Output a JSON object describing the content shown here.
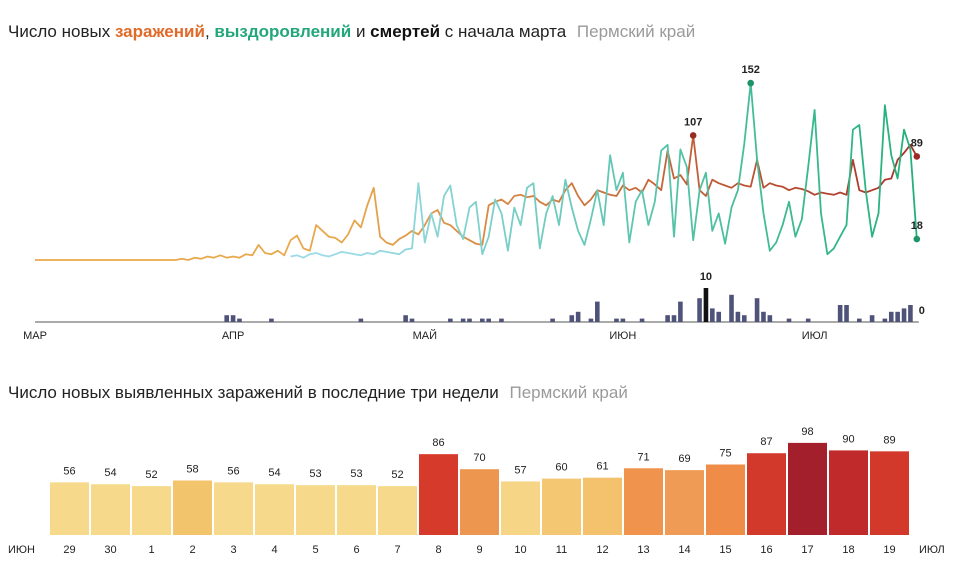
{
  "chart_data": [
    {
      "type": "line",
      "title_lead": "Число новых",
      "title_sep1": ",",
      "title_sep2": "и",
      "title_tail": "с начала марта",
      "subtitle": "Пермский край",
      "categories": [
        "МАР",
        null,
        null,
        null,
        null,
        null,
        null,
        null,
        null,
        null,
        null,
        null,
        null,
        null,
        null,
        null,
        null,
        null,
        null,
        null,
        null,
        null,
        null,
        null,
        null,
        null,
        null,
        null,
        null,
        null,
        null,
        "АПР",
        null,
        null,
        null,
        null,
        null,
        null,
        null,
        null,
        null,
        null,
        null,
        null,
        null,
        null,
        null,
        null,
        null,
        null,
        null,
        null,
        null,
        null,
        null,
        null,
        null,
        null,
        null,
        null,
        null,
        "МАЙ",
        null,
        null,
        null,
        null,
        null,
        null,
        null,
        null,
        null,
        null,
        null,
        null,
        null,
        null,
        null,
        null,
        null,
        null,
        null,
        null,
        null,
        null,
        null,
        null,
        null,
        null,
        null,
        null,
        null,
        null,
        "ИЮН",
        null,
        null,
        null,
        null,
        null,
        null,
        null,
        null,
        null,
        null,
        null,
        null,
        null,
        null,
        null,
        null,
        null,
        null,
        null,
        null,
        null,
        null,
        null,
        null,
        null,
        null,
        null,
        null,
        null,
        "ИЮЛ",
        null,
        null,
        null,
        null,
        null,
        null,
        null,
        null,
        null,
        null,
        null,
        null,
        null,
        null,
        null,
        null
      ],
      "ylim": [
        0,
        160
      ],
      "y2lim": [
        0,
        10
      ],
      "series": [
        {
          "name": "заражений",
          "colors": [
            "#e8a84c",
            "#a8302a"
          ],
          "dot_color": "#9b2b25",
          "values": [
            0,
            0,
            0,
            0,
            0,
            0,
            0,
            0,
            0,
            0,
            0,
            0,
            0,
            0,
            0,
            0,
            0,
            0,
            0,
            0,
            0,
            0,
            0,
            1,
            0,
            2,
            1,
            3,
            2,
            4,
            2,
            3,
            2,
            5,
            4,
            13,
            6,
            5,
            8,
            4,
            17,
            21,
            10,
            8,
            30,
            25,
            20,
            19,
            15,
            22,
            34,
            28,
            47,
            62,
            20,
            15,
            13,
            18,
            21,
            25,
            22,
            30,
            40,
            43,
            32,
            30,
            25,
            20,
            17,
            14,
            13,
            47,
            50,
            52,
            48,
            55,
            56,
            54,
            55,
            50,
            47,
            52,
            50,
            60,
            66,
            55,
            47,
            52,
            60,
            58,
            56,
            55,
            64,
            60,
            62,
            58,
            69,
            65,
            60,
            94,
            70,
            73,
            65,
            107,
            60,
            55,
            69,
            66,
            64,
            62,
            66,
            64,
            63,
            86,
            62,
            66,
            64,
            63,
            60,
            62,
            61,
            59,
            56,
            58,
            57,
            56,
            58,
            56,
            86,
            60,
            58,
            60,
            62,
            69,
            70,
            86,
            92,
            99,
            89
          ]
        },
        {
          "name": "выздоровлений",
          "colors": [
            "#9bdbe6",
            "#22b07a"
          ],
          "dot_color": "#1f9468",
          "values": [
            null,
            null,
            null,
            null,
            null,
            null,
            null,
            null,
            null,
            null,
            null,
            null,
            null,
            null,
            null,
            null,
            null,
            null,
            null,
            null,
            null,
            null,
            null,
            null,
            null,
            null,
            null,
            null,
            null,
            null,
            null,
            null,
            null,
            null,
            null,
            null,
            null,
            null,
            null,
            null,
            3,
            4,
            2,
            5,
            6,
            4,
            3,
            5,
            7,
            6,
            5,
            4,
            6,
            5,
            8,
            7,
            6,
            5,
            9,
            10,
            66,
            15,
            40,
            20,
            55,
            64,
            30,
            18,
            45,
            50,
            5,
            20,
            52,
            40,
            8,
            45,
            30,
            62,
            66,
            10,
            40,
            55,
            30,
            69,
            45,
            25,
            13,
            35,
            60,
            30,
            90,
            60,
            75,
            15,
            50,
            60,
            30,
            50,
            94,
            99,
            20,
            95,
            80,
            17,
            60,
            75,
            25,
            40,
            14,
            45,
            60,
            100,
            152,
            86,
            40,
            8,
            15,
            30,
            50,
            20,
            35,
            80,
            129,
            40,
            5,
            10,
            20,
            30,
            112,
            116,
            60,
            20,
            40,
            133,
            90,
            70,
            112,
            95,
            18
          ]
        },
        {
          "name": "смертей",
          "axis": "y2",
          "color": "#4f5379",
          "peak_color": "#111111",
          "values": [
            0,
            0,
            0,
            0,
            0,
            0,
            0,
            0,
            0,
            0,
            0,
            0,
            0,
            0,
            0,
            0,
            0,
            0,
            0,
            0,
            0,
            0,
            0,
            0,
            0,
            0,
            0,
            0,
            0,
            0,
            2,
            2,
            1,
            0,
            0,
            0,
            0,
            1,
            0,
            0,
            0,
            0,
            0,
            0,
            0,
            0,
            0,
            0,
            0,
            0,
            0,
            1,
            0,
            0,
            0,
            0,
            0,
            0,
            2,
            1,
            0,
            0,
            0,
            0,
            0,
            1,
            0,
            1,
            1,
            0,
            1,
            1,
            0,
            1,
            0,
            0,
            0,
            0,
            0,
            0,
            0,
            1,
            0,
            0,
            2,
            3,
            0,
            1,
            6,
            0,
            0,
            1,
            1,
            0,
            0,
            1,
            0,
            0,
            0,
            2,
            2,
            6,
            0,
            0,
            7,
            10,
            4,
            3,
            0,
            8,
            3,
            2,
            0,
            7,
            3,
            2,
            0,
            0,
            1,
            0,
            0,
            1,
            0,
            0,
            0,
            0,
            5,
            5,
            0,
            1,
            0,
            2,
            0,
            1,
            3,
            3,
            4,
            5,
            0
          ]
        }
      ]
    },
    {
      "type": "bar",
      "title": "Число новых выявленных заражений в последние три недели",
      "subtitle": "Пермский край",
      "start_label": "ИЮН",
      "end_label": "ИЮЛ",
      "categories": [
        "29",
        "30",
        "1",
        "2",
        "3",
        "4",
        "5",
        "6",
        "7",
        "8",
        "9",
        "10",
        "11",
        "12",
        "13",
        "14",
        "15",
        "16",
        "17",
        "18",
        "19"
      ],
      "weekends": [
        false,
        false,
        false,
        false,
        false,
        true,
        true,
        false,
        false,
        false,
        false,
        false,
        true,
        true,
        false,
        false,
        false,
        false,
        false,
        true,
        true
      ],
      "weekend_color": "#c0392b",
      "values": [
        56,
        54,
        52,
        58,
        56,
        54,
        53,
        53,
        52,
        86,
        70,
        57,
        60,
        61,
        71,
        69,
        75,
        87,
        98,
        90,
        89
      ],
      "colors": [
        "#f6d98a",
        "#f6d98a",
        "#f6d98a",
        "#f2c56c",
        "#f6d98a",
        "#f6d98a",
        "#f6d98a",
        "#f6d98a",
        "#f6d98a",
        "#d63a2a",
        "#ec9650",
        "#f6d587",
        "#f4c873",
        "#f4c26d",
        "#ef934d",
        "#ef9a55",
        "#ee8c48",
        "#d3392b",
        "#a31f2b",
        "#c02a2b",
        "#d3392b"
      ],
      "ylim": [
        0,
        100
      ]
    }
  ]
}
